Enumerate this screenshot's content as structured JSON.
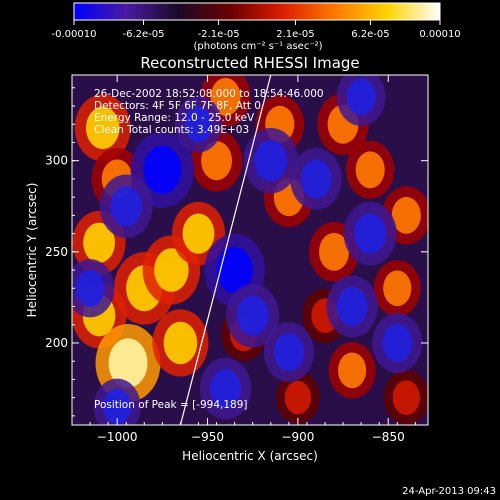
{
  "colors": {
    "background": "#000000",
    "foreground": "#ffffff",
    "colormap": [
      "#0000ff",
      "#4a1aa0",
      "#1a0a25",
      "#6b0000",
      "#dd1e00",
      "#ff7a00",
      "#ffd400",
      "#ffffff"
    ]
  },
  "colorbar": {
    "tick_labels": [
      "-0.00010",
      "-6.2e-05",
      "-2.1e-05",
      "2.1e-05",
      "6.2e-05",
      "0.00010"
    ],
    "tick_values": [
      -0.0001,
      -6.2e-05,
      -2.1e-05,
      2.1e-05,
      6.2e-05,
      0.0001
    ],
    "range": [
      -0.0001,
      0.0001
    ],
    "units_label": "(photons cm⁻² s⁻¹ asec⁻²)"
  },
  "plot": {
    "title": "Reconstructed RHESSI Image",
    "info_lines": [
      "26-Dec-2002 18:52:08.000 to 18:54:46.000",
      "Detectors: 4F 5F 6F 7F 8F, Att 0",
      "Energy Range: 12.0 - 25.0 keV",
      "Clean    Total counts: 3.49E+03"
    ],
    "peak_label": "Position of Peak = [-994,189]",
    "footer_timestamp": "24-Apr-2013 09:43"
  },
  "chart_data": {
    "type": "heatmap",
    "title": "Reconstructed RHESSI Image",
    "xlabel": "Heliocentric X (arcsec)",
    "ylabel": "Heliocentric Y (arcsec)",
    "xlim": [
      -1025,
      -828
    ],
    "ylim": [
      155,
      347
    ],
    "x_ticks": [
      -1000,
      -950,
      -900,
      -850
    ],
    "x_tick_labels": [
      "−1000",
      "−950",
      "−900",
      "−850"
    ],
    "y_ticks": [
      200,
      250,
      300
    ],
    "y_tick_labels": [
      "200",
      "250",
      "300"
    ],
    "value_range": [
      -0.0001,
      0.0001
    ],
    "peak_position": [
      -994,
      189
    ],
    "limb_line": [
      [
        -965,
        155
      ],
      [
        -915,
        347
      ]
    ],
    "blobs": [
      {
        "x": -1008,
        "y": 318,
        "v": 0.7
      },
      {
        "x": -1000,
        "y": 290,
        "v": 0.55
      },
      {
        "x": -1010,
        "y": 255,
        "v": 0.6
      },
      {
        "x": -985,
        "y": 230,
        "v": 0.85
      },
      {
        "x": -970,
        "y": 240,
        "v": 0.75
      },
      {
        "x": -1010,
        "y": 215,
        "v": 0.65
      },
      {
        "x": -994,
        "y": 189,
        "v": 1.0
      },
      {
        "x": -965,
        "y": 200,
        "v": 0.7
      },
      {
        "x": -955,
        "y": 260,
        "v": 0.6
      },
      {
        "x": -945,
        "y": 300,
        "v": 0.55
      },
      {
        "x": -940,
        "y": 335,
        "v": 0.5
      },
      {
        "x": -910,
        "y": 320,
        "v": 0.45
      },
      {
        "x": -905,
        "y": 280,
        "v": 0.5
      },
      {
        "x": -875,
        "y": 320,
        "v": 0.55
      },
      {
        "x": -860,
        "y": 295,
        "v": 0.45
      },
      {
        "x": -880,
        "y": 250,
        "v": 0.5
      },
      {
        "x": -840,
        "y": 270,
        "v": 0.45
      },
      {
        "x": -845,
        "y": 230,
        "v": 0.4
      },
      {
        "x": -885,
        "y": 215,
        "v": 0.35
      },
      {
        "x": -870,
        "y": 185,
        "v": 0.4
      },
      {
        "x": -930,
        "y": 205,
        "v": 0.35
      },
      {
        "x": -900,
        "y": 170,
        "v": 0.3
      },
      {
        "x": -840,
        "y": 170,
        "v": 0.35
      },
      {
        "x": -975,
        "y": 295,
        "v": -0.95
      },
      {
        "x": -995,
        "y": 275,
        "v": -0.6
      },
      {
        "x": -935,
        "y": 240,
        "v": -0.85
      },
      {
        "x": -925,
        "y": 215,
        "v": -0.6
      },
      {
        "x": -915,
        "y": 300,
        "v": -0.65
      },
      {
        "x": -890,
        "y": 290,
        "v": -0.55
      },
      {
        "x": -860,
        "y": 260,
        "v": -0.6
      },
      {
        "x": -870,
        "y": 220,
        "v": -0.55
      },
      {
        "x": -845,
        "y": 200,
        "v": -0.5
      },
      {
        "x": -905,
        "y": 195,
        "v": -0.5
      },
      {
        "x": -940,
        "y": 175,
        "v": -0.55
      },
      {
        "x": -1015,
        "y": 230,
        "v": -0.45
      },
      {
        "x": -1000,
        "y": 165,
        "v": -0.4
      },
      {
        "x": -865,
        "y": 335,
        "v": -0.45
      },
      {
        "x": -955,
        "y": 320,
        "v": -0.4
      }
    ]
  }
}
